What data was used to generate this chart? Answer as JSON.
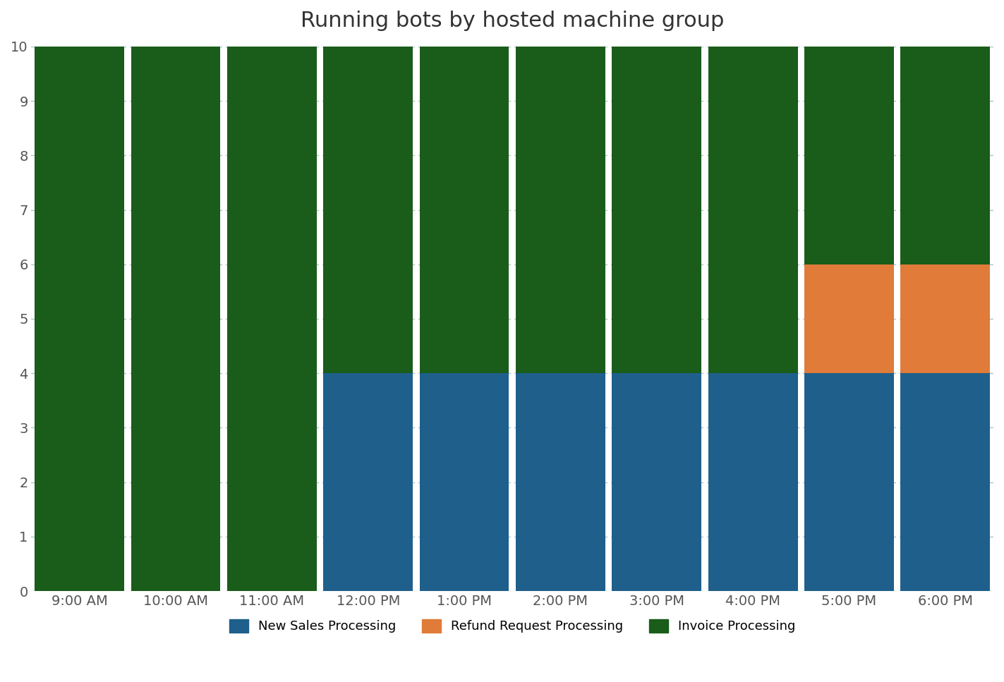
{
  "title": "Running bots by hosted machine group",
  "x_labels": [
    "9:00 AM",
    "10:00 AM",
    "11:00 AM",
    "12:00 PM",
    "1:00 PM",
    "2:00 PM",
    "3:00 PM",
    "4:00 PM",
    "5:00 PM",
    "6:00 PM"
  ],
  "new_sales": [
    0,
    0,
    0,
    4,
    4,
    4,
    4,
    4,
    4,
    4
  ],
  "refund_request": [
    0,
    0,
    0,
    0,
    0,
    0,
    0,
    0,
    2,
    2
  ],
  "invoice_processing": [
    10,
    10,
    10,
    6,
    6,
    6,
    6,
    6,
    4,
    4
  ],
  "colors": {
    "new_sales": "#1f5f8b",
    "refund_request": "#e07b39",
    "invoice_processing": "#1a5c1a"
  },
  "legend_labels": [
    "New Sales Processing",
    "Refund Request Processing",
    "Invoice Processing"
  ],
  "ylim": [
    0,
    10
  ],
  "yticks": [
    0,
    1,
    2,
    3,
    4,
    5,
    6,
    7,
    8,
    9,
    10
  ],
  "background_color": "#ffffff",
  "grid_color": "#a8c4d4",
  "title_fontsize": 22,
  "bar_width": 0.93
}
